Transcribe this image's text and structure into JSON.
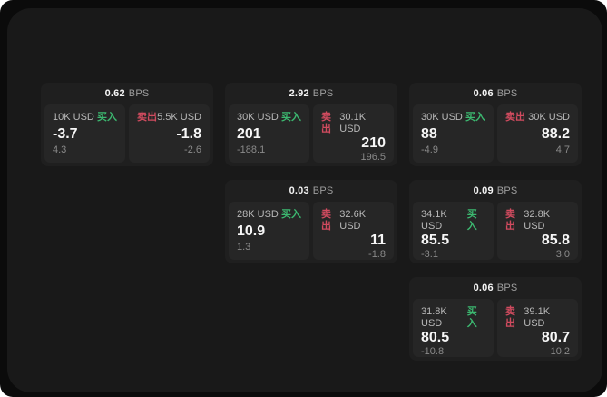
{
  "labels": {
    "buy": "买入",
    "sell": "卖出",
    "bps_suffix": "BPS"
  },
  "colors": {
    "page_bg": "#0b0b0b",
    "window_bg": "#191919",
    "card_bg": "#1f1f1f",
    "panel_bg": "#262626",
    "buy_green": "#3cb870",
    "sell_red": "#d14b5f",
    "value_white": "#f7f7f7",
    "label_gray": "#b8b8b8",
    "delta_gray": "#8a8a8a"
  },
  "cards": [
    {
      "spread_bps": "0.62",
      "buy": {
        "amount": "10K USD",
        "price": "-3.7",
        "delta": "4.3"
      },
      "sell": {
        "amount": "5.5K USD",
        "price": "-1.8",
        "delta": "-2.6"
      }
    },
    {
      "spread_bps": "2.92",
      "buy": {
        "amount": "30K USD",
        "price": "201",
        "delta": "-188.1"
      },
      "sell": {
        "amount": "30.1K USD",
        "price": "210",
        "delta": "196.5"
      }
    },
    {
      "spread_bps": "0.03",
      "buy": {
        "amount": "28K USD",
        "price": "10.9",
        "delta": "1.3"
      },
      "sell": {
        "amount": "32.6K USD",
        "price": "11",
        "delta": "-1.8"
      }
    },
    {
      "spread_bps": "0.06",
      "buy": {
        "amount": "30K USD",
        "price": "88",
        "delta": "-4.9"
      },
      "sell": {
        "amount": "30K USD",
        "price": "88.2",
        "delta": "4.7"
      }
    },
    {
      "spread_bps": "0.09",
      "buy": {
        "amount": "34.1K USD",
        "price": "85.5",
        "delta": "-3.1"
      },
      "sell": {
        "amount": "32.8K USD",
        "price": "85.8",
        "delta": "3.0"
      }
    },
    {
      "spread_bps": "0.06",
      "buy": {
        "amount": "31.8K USD",
        "price": "80.5",
        "delta": "-10.8"
      },
      "sell": {
        "amount": "39.1K USD",
        "price": "80.7",
        "delta": "10.2"
      }
    }
  ]
}
